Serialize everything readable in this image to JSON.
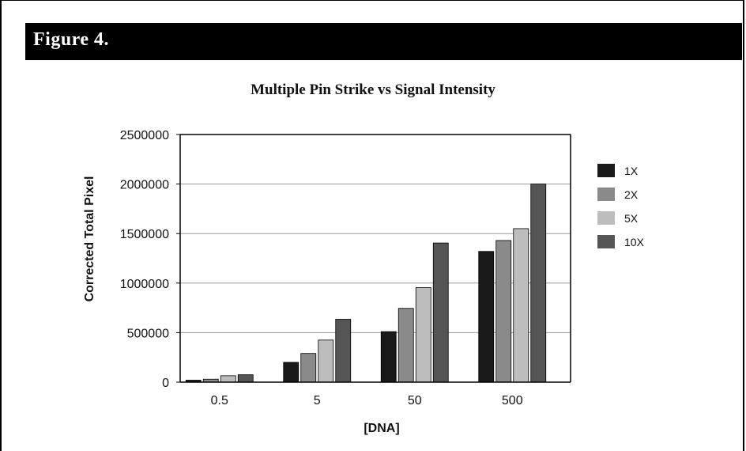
{
  "figure_label": "Figure 4.",
  "chart_data": {
    "type": "bar",
    "title": "Multiple Pin Strike vs Signal Intensity",
    "xlabel": "[DNA]",
    "ylabel": "Corrected Total Pixel",
    "categories": [
      "0.5",
      "5",
      "50",
      "500"
    ],
    "ylim": [
      0,
      2500000
    ],
    "yticks": [
      "0",
      "500000",
      "1000000",
      "1500000",
      "2000000",
      "2500000"
    ],
    "grid": true,
    "legend_position": "right",
    "series": [
      {
        "name": "1X",
        "color": "#1a1a1a",
        "values": [
          20000,
          200000,
          510000,
          1320000
        ]
      },
      {
        "name": "2X",
        "color": "#8a8a8a",
        "values": [
          30000,
          290000,
          745000,
          1430000
        ]
      },
      {
        "name": "5X",
        "color": "#bdbdbd",
        "values": [
          65000,
          425000,
          955000,
          1550000
        ]
      },
      {
        "name": "10X",
        "color": "#555555",
        "values": [
          75000,
          635000,
          1405000,
          2000000
        ]
      }
    ]
  }
}
